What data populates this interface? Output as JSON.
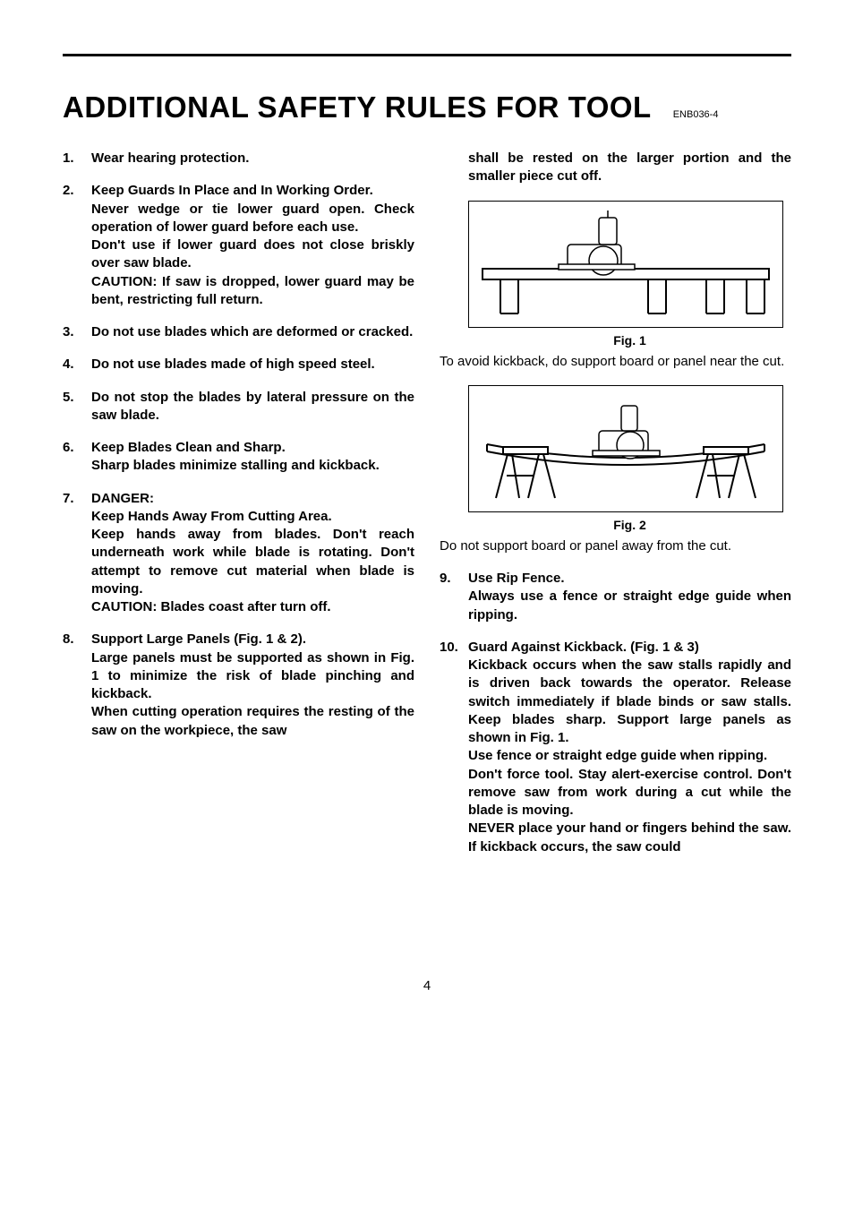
{
  "doc_code": "ENB036-4",
  "title": "ADDITIONAL SAFETY RULES FOR TOOL",
  "page_number": "4",
  "left_rules": [
    {
      "text": "Wear hearing protection."
    },
    {
      "text": "Keep Guards In Place and In Working Order.\nNever wedge or tie lower guard open. Check operation of lower guard before each use.\nDon't use if lower guard does not close briskly over saw blade.\nCAUTION: If saw is dropped, lower guard may be bent, restricting full return."
    },
    {
      "text": "Do not use blades which are deformed or cracked."
    },
    {
      "text": "Do not use blades made of high speed steel."
    },
    {
      "text": "Do not stop the blades by lateral pressure on the saw blade."
    },
    {
      "text": "Keep Blades Clean and Sharp.\nSharp blades minimize stalling and kickback."
    },
    {
      "text": "DANGER:\nKeep Hands Away From Cutting Area.\nKeep hands away from blades. Don't reach underneath work while blade is rotating. Don't attempt to remove cut material when blade is moving.\nCAUTION: Blades coast after turn off."
    },
    {
      "text": "Support Large Panels (Fig. 1 & 2).\nLarge panels must be supported as shown in Fig. 1 to minimize the risk of blade pinching and kickback.\nWhen cutting operation requires the resting of the saw on the workpiece, the saw"
    }
  ],
  "right_top_cont": "shall be rested on the larger portion and the smaller piece cut off.",
  "fig1_label": "Fig. 1",
  "fig1_caption": "To avoid kickback, do support board or panel near the cut.",
  "fig2_label": "Fig. 2",
  "fig2_caption": "Do not support board or panel away from the cut.",
  "right_rules": [
    {
      "num": "9.",
      "text": "Use Rip Fence.\nAlways use a fence or straight edge guide when ripping."
    },
    {
      "num": "10.",
      "text": "Guard Against Kickback. (Fig. 1 & 3)\nKickback occurs when the saw stalls rapidly and is driven back towards the operator. Release switch immediately if blade binds or saw stalls. Keep blades sharp. Support large panels as shown in Fig. 1.\nUse fence or straight edge guide when ripping.\nDon't force tool. Stay alert-exercise control. Don't remove saw from work during a cut while the blade is moving.\nNEVER place your hand or fingers behind the saw. If kickback occurs, the saw could"
    }
  ],
  "colors": {
    "text": "#000000",
    "background": "#ffffff",
    "rule": "#000000"
  },
  "typography": {
    "title_fontsize": 33,
    "body_fontsize": 15,
    "code_fontsize": 11,
    "figlabel_fontsize": 14
  }
}
